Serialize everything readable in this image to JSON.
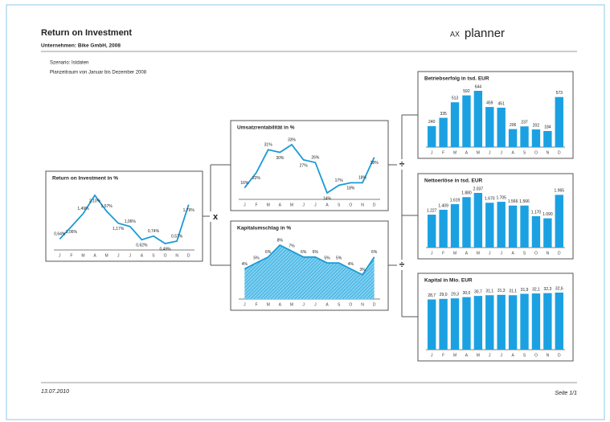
{
  "header": {
    "title": "Return on Investment",
    "company": "Unternehmen: Bike GmbH, 2008",
    "logo_prefix": "AX",
    "logo": "planner"
  },
  "info": [
    "Szenario: Istdaten",
    "Planzeitraum von Januar bis Dezember 2008"
  ],
  "operators": [
    "x",
    "÷",
    "÷"
  ],
  "footer": {
    "date": "13.07.2010",
    "page": "Seite 1/1"
  },
  "chart_data": [
    {
      "type": "line",
      "title": "Return on Investment in %",
      "color": "#1b9ad6",
      "categories": [
        "J",
        "F",
        "M",
        "A",
        "M",
        "J",
        "J",
        "A",
        "S",
        "O",
        "N",
        "D"
      ],
      "values": [
        0.64,
        1.06,
        1.49,
        2.1,
        1.57,
        1.17,
        1.06,
        0.62,
        0.74,
        0.49,
        0.57,
        1.79
      ],
      "value_labels": [
        "0,64%",
        "1,06%",
        "1,49%",
        "2,10%",
        "1,57%",
        "1,17%",
        "1,06%",
        "0,62%",
        "0,74%",
        "0,49%",
        "0,57%",
        "1,79%"
      ]
    },
    {
      "type": "line",
      "title": "Umsatzrentabilität in %",
      "color": "#1b9ad6",
      "categories": [
        "J",
        "F",
        "M",
        "A",
        "M",
        "J",
        "J",
        "A",
        "S",
        "O",
        "N",
        "D"
      ],
      "values": [
        16,
        22,
        31,
        30,
        33,
        27,
        26,
        14,
        17,
        18,
        18,
        28
      ],
      "value_labels": [
        "16%",
        "22%",
        "31%",
        "30%",
        "33%",
        "27%",
        "26%",
        "14%",
        "17%",
        "18%",
        "18%",
        "28%"
      ]
    },
    {
      "type": "area",
      "title": "Kapitalumschlag in %",
      "color": "#1b9ad6",
      "categories": [
        "J",
        "F",
        "M",
        "A",
        "M",
        "J",
        "J",
        "A",
        "S",
        "O",
        "N",
        "D"
      ],
      "values": [
        4,
        5,
        6,
        8,
        7,
        6,
        6,
        5,
        5,
        4,
        3,
        6
      ],
      "value_labels": [
        "4%",
        "5%",
        "6%",
        "8%",
        "7%",
        "6%",
        "6%",
        "5%",
        "5%",
        "4%",
        "3%",
        "6%"
      ]
    },
    {
      "type": "bar",
      "title": "Betriebserfolg in tsd. EUR",
      "color": "#1ba1e2",
      "categories": [
        "J",
        "F",
        "M",
        "A",
        "M",
        "J",
        "J",
        "A",
        "S",
        "O",
        "N",
        "D"
      ],
      "values": [
        240,
        335,
        513,
        592,
        644,
        459,
        451,
        206,
        237,
        202,
        184,
        573
      ]
    },
    {
      "type": "bar",
      "title": "Nettoerlöse in tsd. EUR",
      "color": "#1ba1e2",
      "categories": [
        "J",
        "F",
        "M",
        "A",
        "M",
        "J",
        "J",
        "A",
        "S",
        "O",
        "N",
        "D"
      ],
      "values": [
        1227,
        1409,
        1619,
        1880,
        2037,
        1670,
        1705,
        1566,
        1566,
        1170,
        1090,
        1965
      ],
      "value_labels": [
        "1.227",
        "1.409",
        "1.619",
        "1.880",
        "2.037",
        "1.670",
        "1.705",
        "1.566",
        "1.566",
        "1.170",
        "1.090",
        "1.965"
      ]
    },
    {
      "type": "bar",
      "title": "Kapital in Mio. EUR",
      "color": "#1ba1e2",
      "categories": [
        "J",
        "F",
        "M",
        "A",
        "M",
        "J",
        "J",
        "A",
        "S",
        "O",
        "N",
        "D"
      ],
      "values": [
        28.7,
        29.0,
        29.3,
        30.0,
        30.7,
        31.1,
        31.3,
        31.1,
        31.9,
        32.1,
        32.3,
        32.6
      ],
      "value_labels": [
        "28,7",
        "29,0",
        "29,3",
        "30,0",
        "30,7",
        "31,1",
        "31,3",
        "31,1",
        "31,9",
        "32,1",
        "32,3",
        "32,6"
      ]
    }
  ]
}
